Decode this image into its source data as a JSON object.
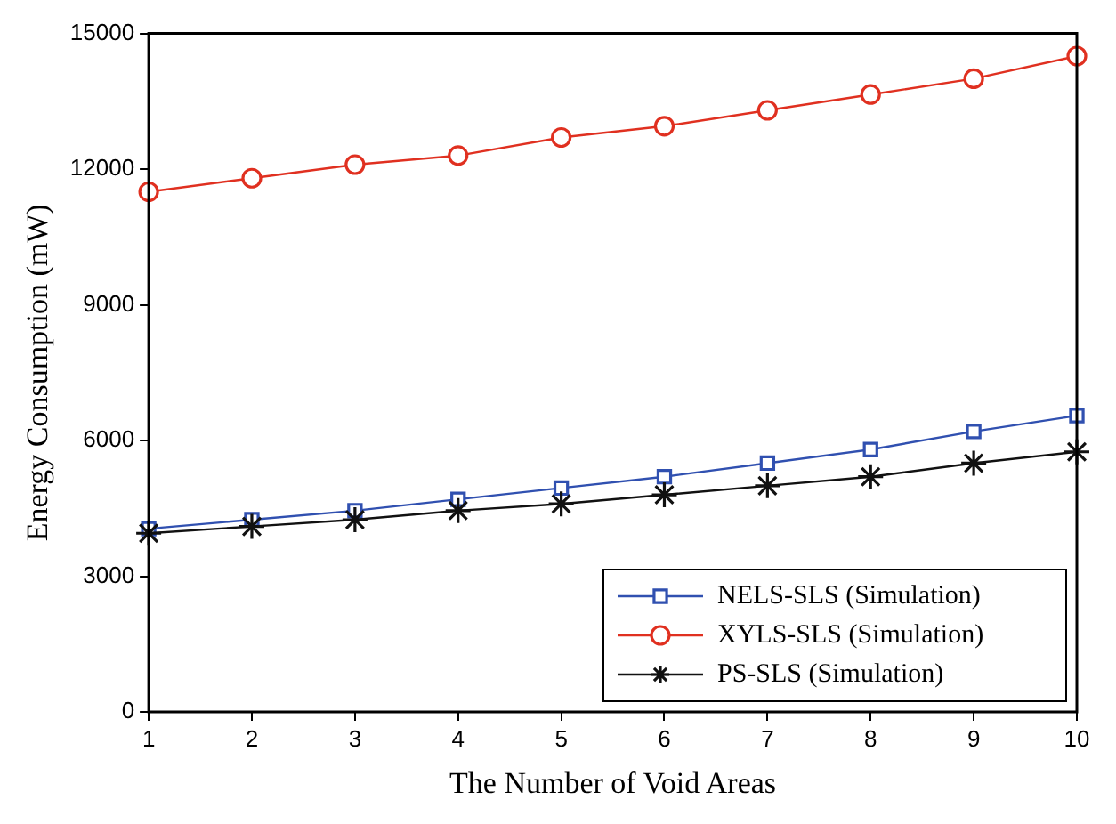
{
  "chart_data": {
    "type": "line",
    "xlabel": "The Number of Void Areas",
    "ylabel": "Energy Consumption (mW)",
    "x": [
      1,
      2,
      3,
      4,
      5,
      6,
      7,
      8,
      9,
      10
    ],
    "xlim": [
      1,
      10
    ],
    "xticks": [
      1,
      2,
      3,
      4,
      5,
      6,
      7,
      8,
      9,
      10
    ],
    "ylim": [
      0,
      15000
    ],
    "yticks": [
      0,
      3000,
      6000,
      9000,
      12000,
      15000
    ],
    "grid": false,
    "legend": "bottom right",
    "line_style": "solid",
    "series": [
      {
        "name": "NELS-SLS (Simulation)",
        "color": "#3050b0",
        "marker": "square",
        "values": [
          4050,
          4250,
          4450,
          4700,
          4950,
          5200,
          5500,
          5800,
          6200,
          6550
        ]
      },
      {
        "name": "XYLS-SLS (Simulation)",
        "color": "#e03020",
        "marker": "circle",
        "values": [
          11500,
          11800,
          12100,
          12300,
          12700,
          12950,
          13300,
          13650,
          14000,
          14500
        ]
      },
      {
        "name": "PS-SLS (Simulation)",
        "color": "#111111",
        "marker": "cross",
        "values": [
          3950,
          4100,
          4250,
          4450,
          4600,
          4800,
          5000,
          5200,
          5500,
          5750
        ]
      }
    ]
  }
}
